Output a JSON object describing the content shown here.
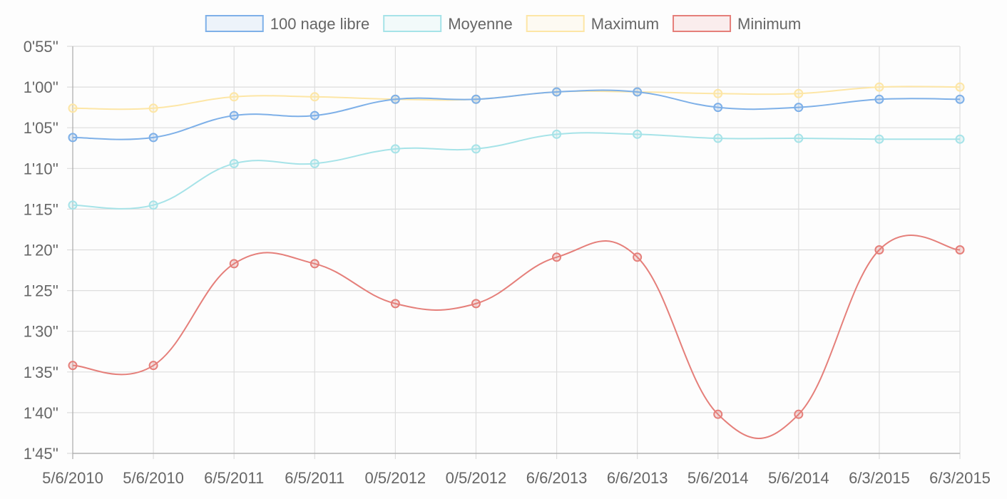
{
  "chart_data": {
    "type": "line",
    "categories": [
      "5/6/2010",
      "5/6/2010",
      "6/5/2011",
      "6/5/2011",
      "0/5/2012",
      "0/5/2012",
      "6/6/2013",
      "6/6/2013",
      "5/6/2014",
      "5/6/2014",
      "6/3/2015",
      "6/3/2015"
    ],
    "y_ticks": [
      "0'55''",
      "1'00''",
      "1'05''",
      "1'10''",
      "1'15''",
      "1'20''",
      "1'25''",
      "1'30''",
      "1'35''",
      "1'40''",
      "1'45''"
    ],
    "ylim_seconds": [
      55,
      105
    ],
    "y_reversed": true,
    "grid": true,
    "legend_position": "top",
    "series": [
      {
        "name": "100 nage libre",
        "color": "#7eb0e8",
        "values": [
          66.2,
          66.2,
          63.5,
          63.5,
          61.5,
          61.5,
          60.6,
          60.6,
          62.5,
          62.5,
          61.5,
          61.5
        ]
      },
      {
        "name": "Moyenne",
        "color": "#a6e3e8",
        "values": [
          74.5,
          74.5,
          69.4,
          69.4,
          67.6,
          67.6,
          65.8,
          65.8,
          66.3,
          66.3,
          66.4,
          66.4
        ]
      },
      {
        "name": "Maximum",
        "color": "#fde6a6",
        "values": [
          62.6,
          62.6,
          61.2,
          61.2,
          61.5,
          61.5,
          60.6,
          60.6,
          60.8,
          60.8,
          60.0,
          60.0
        ]
      },
      {
        "name": "Minimum",
        "color": "#e57f7a",
        "values": [
          94.2,
          94.2,
          81.7,
          81.7,
          86.6,
          86.6,
          80.9,
          80.9,
          100.2,
          100.2,
          80.0,
          80.0
        ]
      }
    ]
  }
}
